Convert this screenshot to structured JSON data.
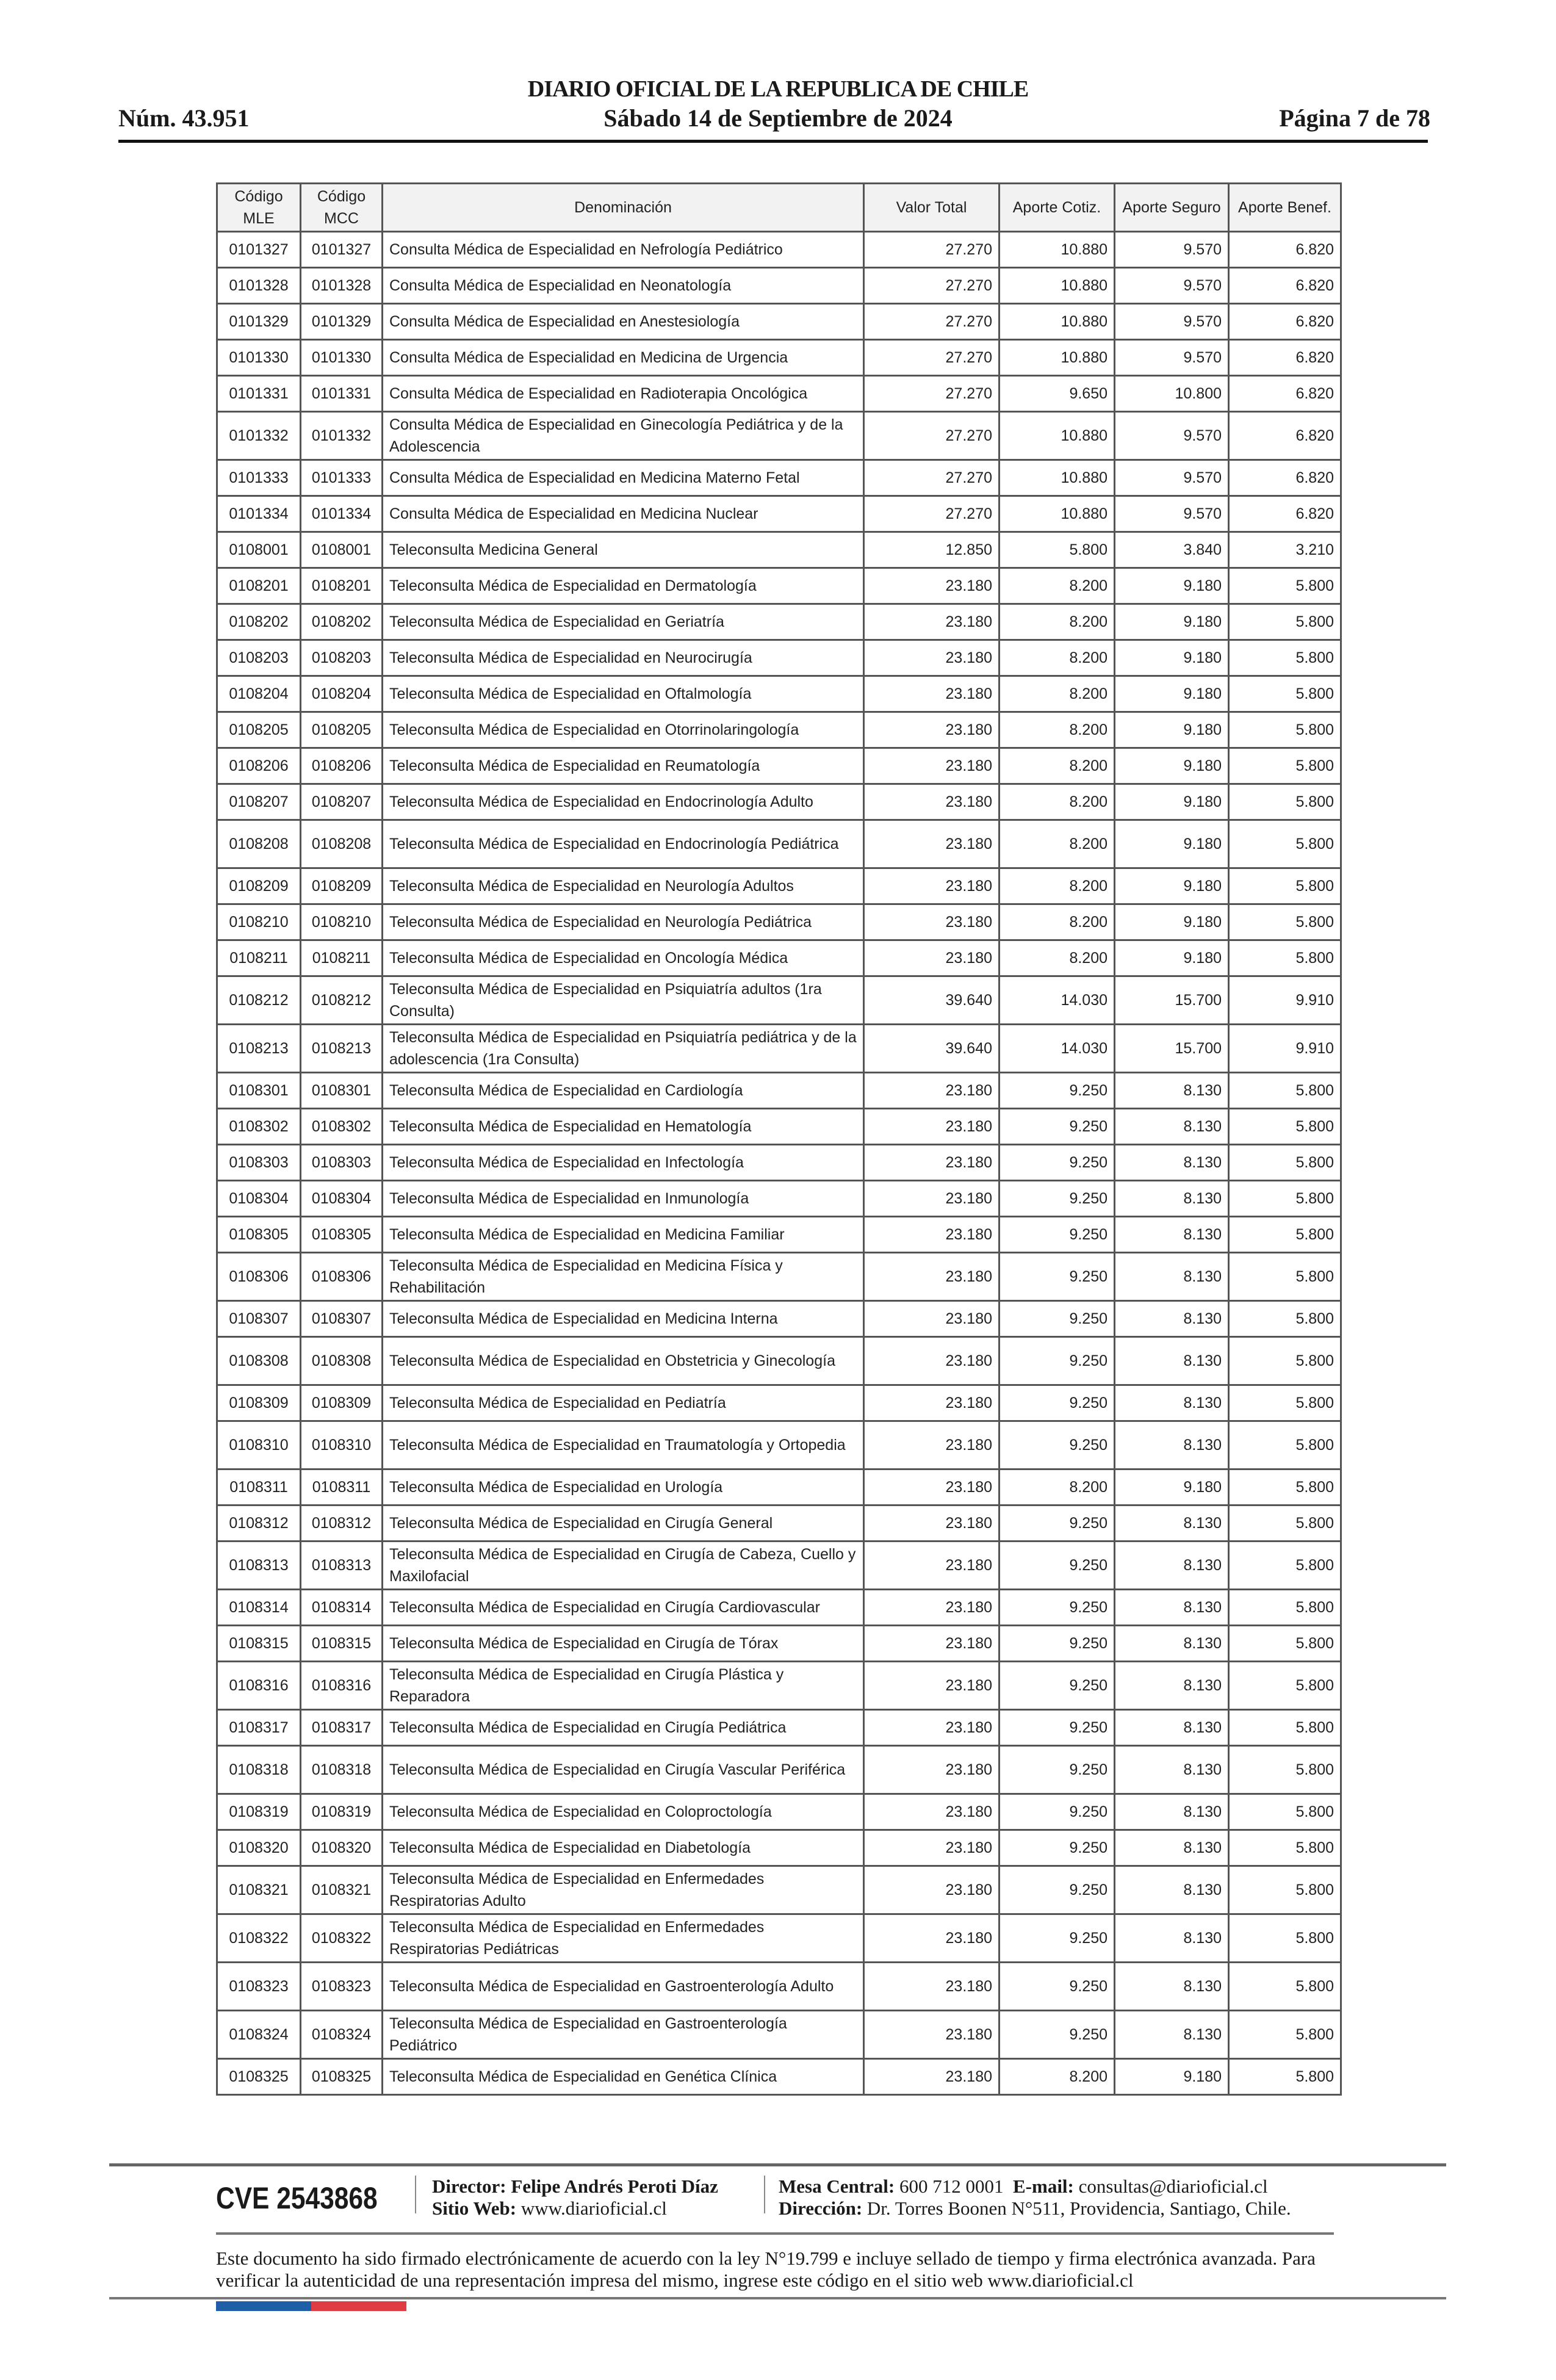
{
  "header": {
    "title": "DIARIO OFICIAL DE LA REPUBLICA DE CHILE",
    "number": "Núm. 43.951",
    "date": "Sábado 14 de Septiembre de 2024",
    "page": "Página 7 de 78"
  },
  "table": {
    "columns": [
      "Código MLE",
      "Código MCC",
      "Denominación",
      "Valor Total",
      "Aporte Cotiz.",
      "Aporte Seguro",
      "Aporte Benef."
    ],
    "rows": [
      [
        "0101327",
        "0101327",
        "Consulta Médica de Especialidad en Nefrología Pediátrico",
        "27.270",
        "10.880",
        "9.570",
        "6.820"
      ],
      [
        "0101328",
        "0101328",
        "Consulta Médica de Especialidad en Neonatología",
        "27.270",
        "10.880",
        "9.570",
        "6.820"
      ],
      [
        "0101329",
        "0101329",
        "Consulta Médica de Especialidad en Anestesiología",
        "27.270",
        "10.880",
        "9.570",
        "6.820"
      ],
      [
        "0101330",
        "0101330",
        "Consulta Médica de Especialidad en Medicina de Urgencia",
        "27.270",
        "10.880",
        "9.570",
        "6.820"
      ],
      [
        "0101331",
        "0101331",
        "Consulta Médica de Especialidad en Radioterapia Oncológica",
        "27.270",
        "9.650",
        "10.800",
        "6.820"
      ],
      [
        "0101332",
        "0101332",
        "Consulta Médica de Especialidad en Ginecología Pediátrica y de la Adolescencia",
        "27.270",
        "10.880",
        "9.570",
        "6.820"
      ],
      [
        "0101333",
        "0101333",
        "Consulta Médica de Especialidad en Medicina Materno Fetal",
        "27.270",
        "10.880",
        "9.570",
        "6.820"
      ],
      [
        "0101334",
        "0101334",
        "Consulta Médica de Especialidad en Medicina Nuclear",
        "27.270",
        "10.880",
        "9.570",
        "6.820"
      ],
      [
        "0108001",
        "0108001",
        "Teleconsulta Medicina General",
        "12.850",
        "5.800",
        "3.840",
        "3.210"
      ],
      [
        "0108201",
        "0108201",
        "Teleconsulta Médica de Especialidad en Dermatología",
        "23.180",
        "8.200",
        "9.180",
        "5.800"
      ],
      [
        "0108202",
        "0108202",
        "Teleconsulta Médica de Especialidad en Geriatría",
        "23.180",
        "8.200",
        "9.180",
        "5.800"
      ],
      [
        "0108203",
        "0108203",
        "Teleconsulta Médica de Especialidad en Neurocirugía",
        "23.180",
        "8.200",
        "9.180",
        "5.800"
      ],
      [
        "0108204",
        "0108204",
        "Teleconsulta Médica de Especialidad en Oftalmología",
        "23.180",
        "8.200",
        "9.180",
        "5.800"
      ],
      [
        "0108205",
        "0108205",
        "Teleconsulta Médica de Especialidad en Otorrinolaringología",
        "23.180",
        "8.200",
        "9.180",
        "5.800"
      ],
      [
        "0108206",
        "0108206",
        "Teleconsulta Médica de Especialidad en Reumatología",
        "23.180",
        "8.200",
        "9.180",
        "5.800"
      ],
      [
        "0108207",
        "0108207",
        "Teleconsulta Médica de Especialidad en Endocrinología Adulto",
        "23.180",
        "8.200",
        "9.180",
        "5.800"
      ],
      [
        "0108208",
        "0108208",
        "Teleconsulta Médica de Especialidad en Endocrinología Pediátrica",
        "23.180",
        "8.200",
        "9.180",
        "5.800"
      ],
      [
        "0108209",
        "0108209",
        "Teleconsulta Médica de Especialidad en Neurología Adultos",
        "23.180",
        "8.200",
        "9.180",
        "5.800"
      ],
      [
        "0108210",
        "0108210",
        "Teleconsulta Médica de Especialidad en Neurología Pediátrica",
        "23.180",
        "8.200",
        "9.180",
        "5.800"
      ],
      [
        "0108211",
        "0108211",
        "Teleconsulta Médica de Especialidad en Oncología Médica",
        "23.180",
        "8.200",
        "9.180",
        "5.800"
      ],
      [
        "0108212",
        "0108212",
        "Teleconsulta Médica de Especialidad en Psiquiatría adultos (1ra Consulta)",
        "39.640",
        "14.030",
        "15.700",
        "9.910"
      ],
      [
        "0108213",
        "0108213",
        "Teleconsulta Médica de Especialidad en Psiquiatría pediátrica y de la adolescencia (1ra Consulta)",
        "39.640",
        "14.030",
        "15.700",
        "9.910"
      ],
      [
        "0108301",
        "0108301",
        "Teleconsulta Médica de Especialidad en Cardiología",
        "23.180",
        "9.250",
        "8.130",
        "5.800"
      ],
      [
        "0108302",
        "0108302",
        "Teleconsulta Médica de Especialidad en Hematología",
        "23.180",
        "9.250",
        "8.130",
        "5.800"
      ],
      [
        "0108303",
        "0108303",
        "Teleconsulta Médica de Especialidad en Infectología",
        "23.180",
        "9.250",
        "8.130",
        "5.800"
      ],
      [
        "0108304",
        "0108304",
        "Teleconsulta Médica de Especialidad en Inmunología",
        "23.180",
        "9.250",
        "8.130",
        "5.800"
      ],
      [
        "0108305",
        "0108305",
        "Teleconsulta Médica de Especialidad en Medicina Familiar",
        "23.180",
        "9.250",
        "8.130",
        "5.800"
      ],
      [
        "0108306",
        "0108306",
        "Teleconsulta Médica de Especialidad en Medicina Física y Rehabilitación",
        "23.180",
        "9.250",
        "8.130",
        "5.800"
      ],
      [
        "0108307",
        "0108307",
        "Teleconsulta Médica de Especialidad en Medicina Interna",
        "23.180",
        "9.250",
        "8.130",
        "5.800"
      ],
      [
        "0108308",
        "0108308",
        "Teleconsulta Médica de Especialidad en Obstetricia y Ginecología",
        "23.180",
        "9.250",
        "8.130",
        "5.800"
      ],
      [
        "0108309",
        "0108309",
        "Teleconsulta Médica de Especialidad en Pediatría",
        "23.180",
        "9.250",
        "8.130",
        "5.800"
      ],
      [
        "0108310",
        "0108310",
        "Teleconsulta Médica de Especialidad en Traumatología y Ortopedia",
        "23.180",
        "9.250",
        "8.130",
        "5.800"
      ],
      [
        "0108311",
        "0108311",
        "Teleconsulta Médica de Especialidad en Urología",
        "23.180",
        "8.200",
        "9.180",
        "5.800"
      ],
      [
        "0108312",
        "0108312",
        "Teleconsulta Médica de Especialidad en Cirugía General",
        "23.180",
        "9.250",
        "8.130",
        "5.800"
      ],
      [
        "0108313",
        "0108313",
        "Teleconsulta Médica de Especialidad en Cirugía de Cabeza, Cuello y Maxilofacial",
        "23.180",
        "9.250",
        "8.130",
        "5.800"
      ],
      [
        "0108314",
        "0108314",
        "Teleconsulta Médica de Especialidad en Cirugía Cardiovascular",
        "23.180",
        "9.250",
        "8.130",
        "5.800"
      ],
      [
        "0108315",
        "0108315",
        "Teleconsulta Médica de Especialidad en Cirugía de Tórax",
        "23.180",
        "9.250",
        "8.130",
        "5.800"
      ],
      [
        "0108316",
        "0108316",
        "Teleconsulta Médica de Especialidad en Cirugía Plástica y Reparadora",
        "23.180",
        "9.250",
        "8.130",
        "5.800"
      ],
      [
        "0108317",
        "0108317",
        "Teleconsulta Médica de Especialidad en Cirugía Pediátrica",
        "23.180",
        "9.250",
        "8.130",
        "5.800"
      ],
      [
        "0108318",
        "0108318",
        "Teleconsulta Médica de Especialidad en Cirugía Vascular Periférica",
        "23.180",
        "9.250",
        "8.130",
        "5.800"
      ],
      [
        "0108319",
        "0108319",
        "Teleconsulta Médica de Especialidad en Coloproctología",
        "23.180",
        "9.250",
        "8.130",
        "5.800"
      ],
      [
        "0108320",
        "0108320",
        "Teleconsulta Médica de Especialidad en Diabetología",
        "23.180",
        "9.250",
        "8.130",
        "5.800"
      ],
      [
        "0108321",
        "0108321",
        "Teleconsulta Médica de Especialidad en Enfermedades Respiratorias Adulto",
        "23.180",
        "9.250",
        "8.130",
        "5.800"
      ],
      [
        "0108322",
        "0108322",
        "Teleconsulta Médica de Especialidad en Enfermedades Respiratorias Pediátricas",
        "23.180",
        "9.250",
        "8.130",
        "5.800"
      ],
      [
        "0108323",
        "0108323",
        "Teleconsulta Médica de Especialidad en Gastroenterología Adulto",
        "23.180",
        "9.250",
        "8.130",
        "5.800"
      ],
      [
        "0108324",
        "0108324",
        "Teleconsulta Médica de Especialidad en Gastroenterología Pediátrico",
        "23.180",
        "9.250",
        "8.130",
        "5.800"
      ],
      [
        "0108325",
        "0108325",
        "Teleconsulta Médica de Especialidad en Genética Clínica",
        "23.180",
        "8.200",
        "9.180",
        "5.800"
      ]
    ]
  },
  "footer": {
    "cve": "CVE 2543868",
    "director_label": "Director:",
    "director": "Felipe Andrés Peroti Díaz",
    "website_label": "Sitio Web:",
    "website": "www.diarioficial.cl",
    "phone_label": "Mesa Central:",
    "phone": "600 712 0001",
    "email_label": "E-mail:",
    "email": "consultas@diarioficial.cl",
    "address_label": "Dirección:",
    "address": "Dr. Torres Boonen N°511, Providencia, Santiago, Chile.",
    "notice": "Este documento ha sido firmado electrónicamente de acuerdo con la ley N°19.799 e incluye sellado de tiempo y firma electrónica avanzada. Para verificar la autenticidad de una representación impresa del mismo, ingrese este código en el sitio web www.diarioficial.cl",
    "flag_colors": [
      "#1f5fa8",
      "#e03c44"
    ]
  }
}
